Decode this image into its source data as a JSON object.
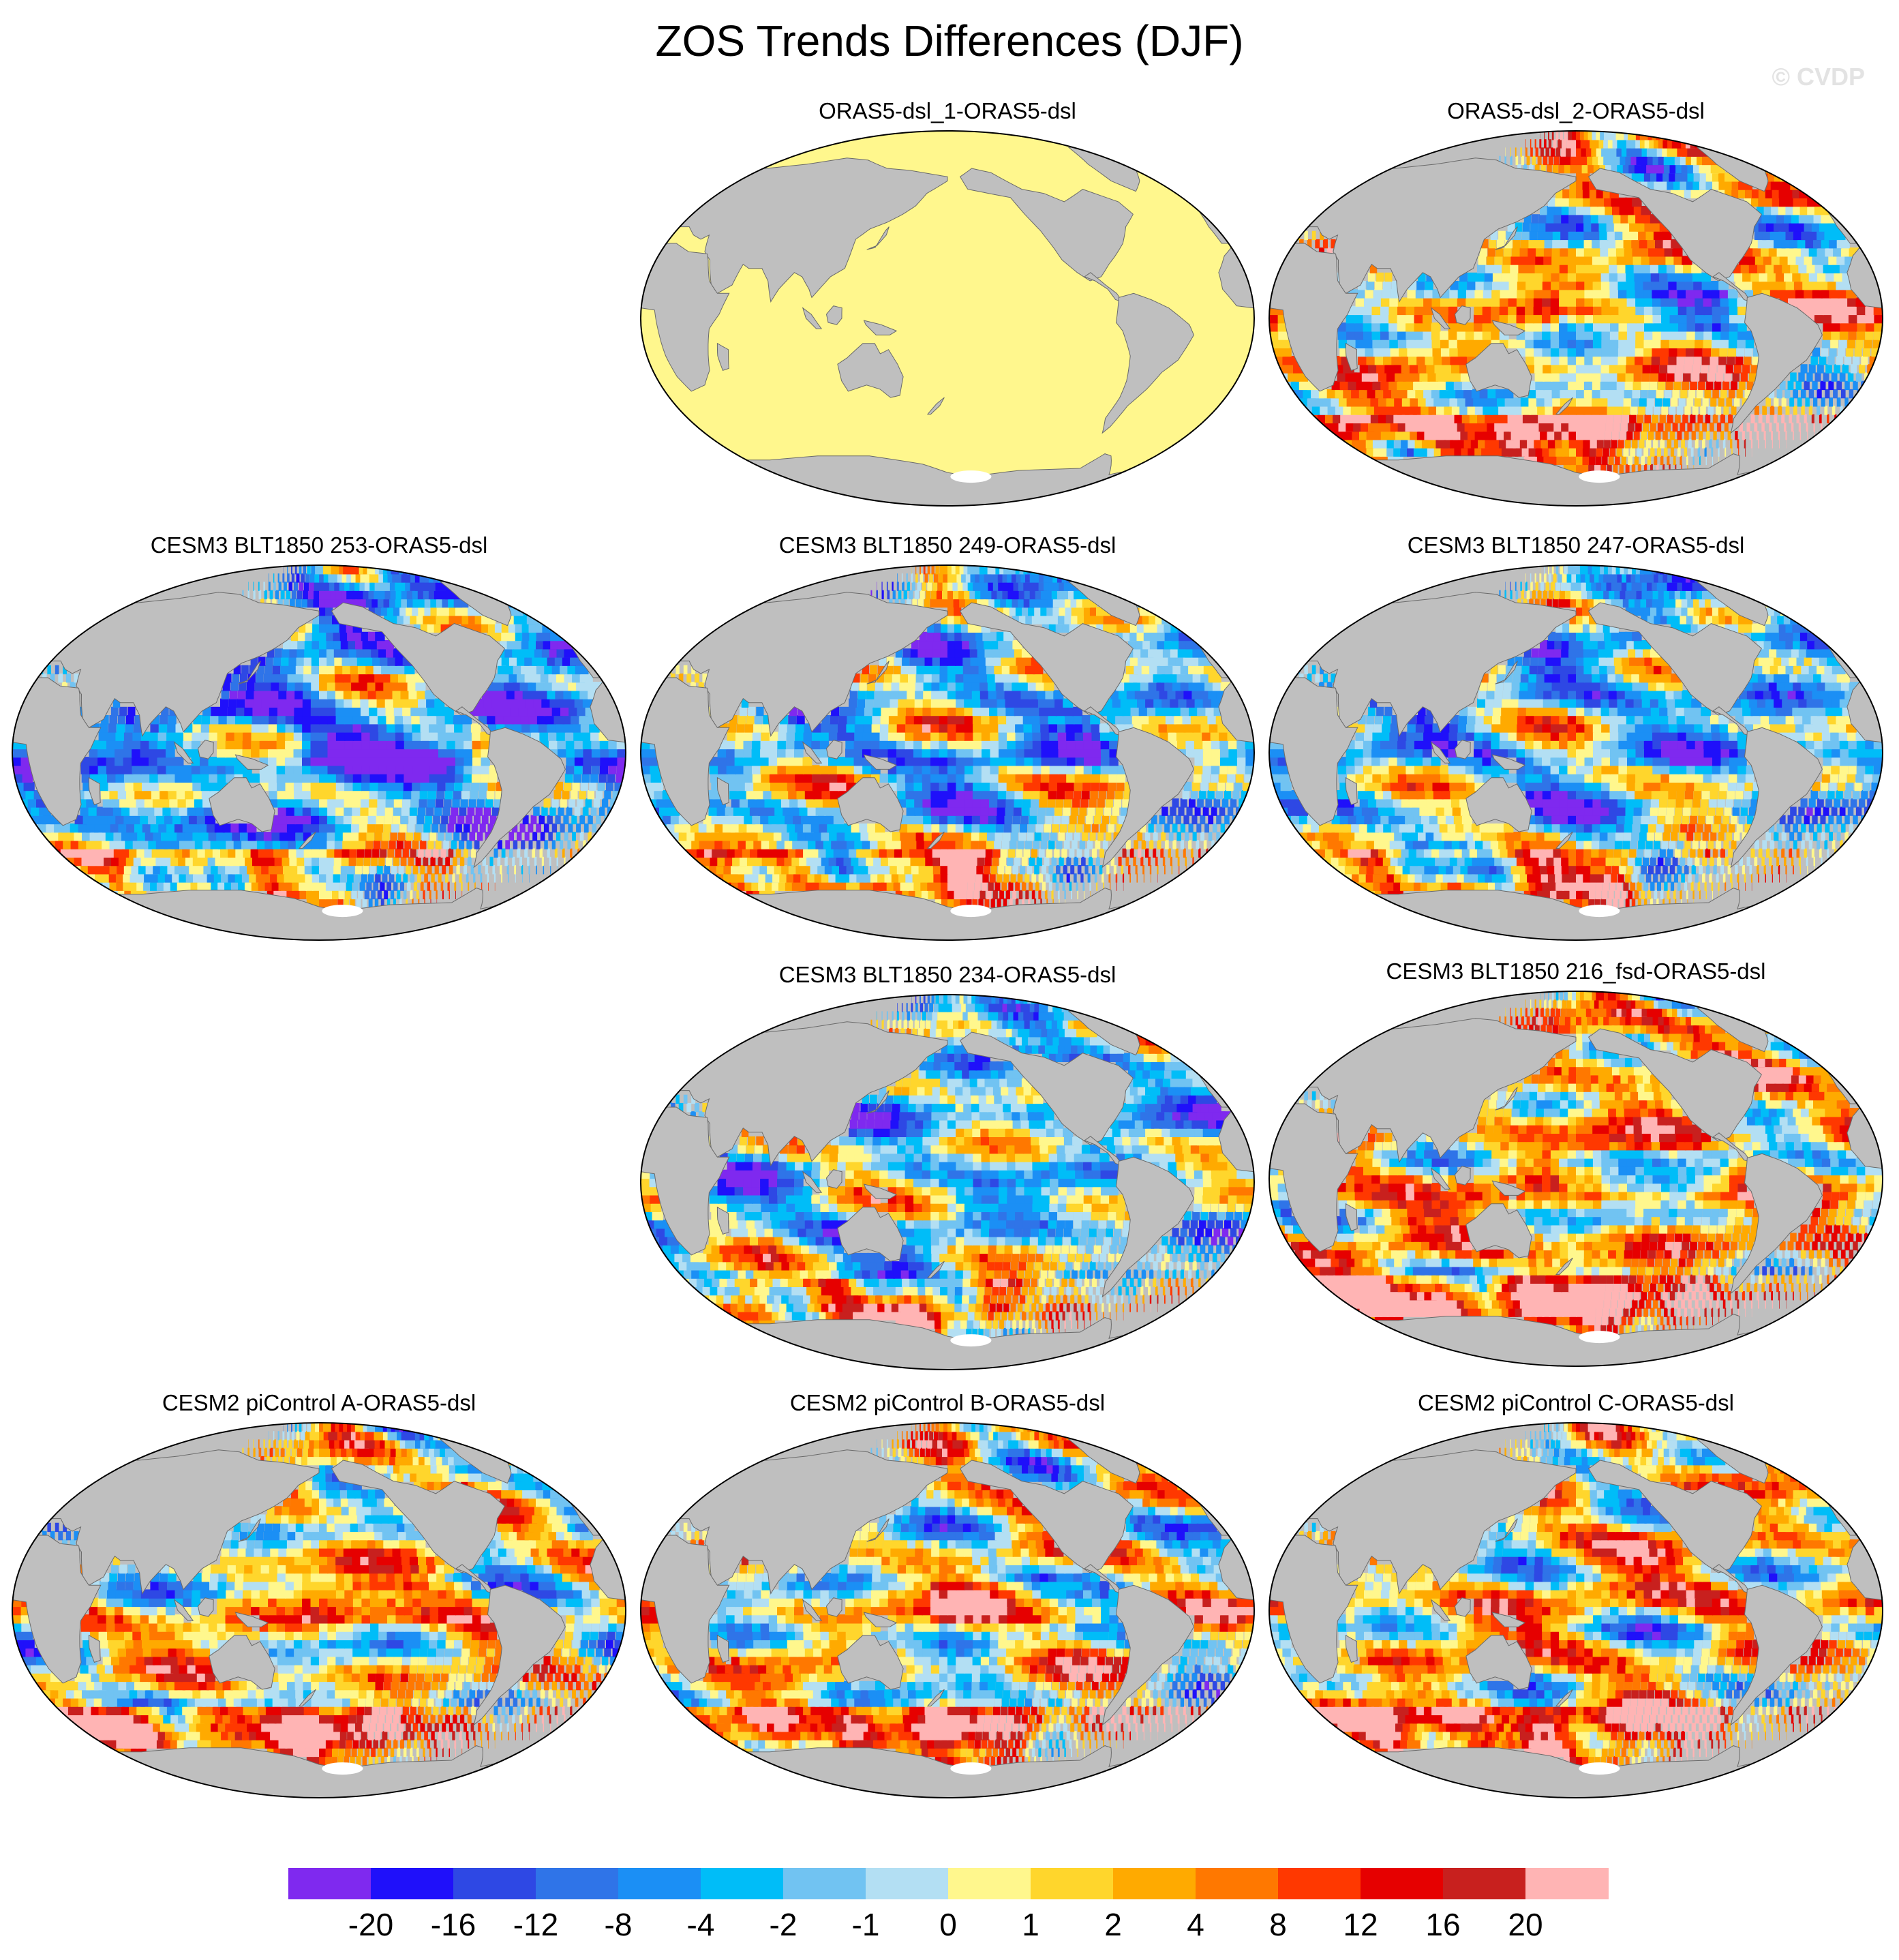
{
  "title": "ZOS Trends Differences (DJF)",
  "watermark": "© CVDP",
  "panels": [
    {
      "label": "ORAS5-dsl_1-ORAS5-dsl",
      "uniform": true
    },
    {
      "label": "ORAS5-dsl_2-ORAS5-dsl",
      "bias": 0.5,
      "seed": 11
    },
    {
      "label": "CESM3 BLT1850 253-ORAS5-dsl",
      "bias": -1.2,
      "seed": 23
    },
    {
      "label": "CESM3 BLT1850 249-ORAS5-dsl",
      "bias": -0.5,
      "seed": 37
    },
    {
      "label": "CESM3 BLT1850 247-ORAS5-dsl",
      "bias": -0.7,
      "seed": 41
    },
    {
      "label": "CESM3 BLT1850 234-ORAS5-dsl",
      "bias": -0.6,
      "seed": 53
    },
    {
      "label": "CESM3 BLT1850 216_fsd-ORAS5-dsl",
      "bias": 0.9,
      "seed": 67
    },
    {
      "label": "CESM2 piControl A-ORAS5-dsl",
      "bias": 0.4,
      "seed": 71
    },
    {
      "label": "CESM2 piControl B-ORAS5-dsl",
      "bias": 0.3,
      "seed": 83
    },
    {
      "label": "CESM2 piControl C-ORAS5-dsl",
      "bias": 0.6,
      "seed": 97
    }
  ],
  "colorbar": {
    "labels": [
      "-20",
      "-16",
      "-12",
      "-8",
      "-4",
      "-2",
      "-1",
      "0",
      "1",
      "2",
      "4",
      "8",
      "12",
      "16",
      "20"
    ],
    "colors": [
      "#7f29ef",
      "#1f10fa",
      "#2e48e4",
      "#2f74e8",
      "#1b8ff5",
      "#00bdf8",
      "#71c3f2",
      "#b3dff3",
      "#fff78d",
      "#ffd62c",
      "#ffaa00",
      "#ff7800",
      "#ff3800",
      "#e60000",
      "#c8201e",
      "#ffb4b4"
    ]
  },
  "colors": {
    "land": "#bfbfbf",
    "uniform_ocean": "#fff78d"
  }
}
